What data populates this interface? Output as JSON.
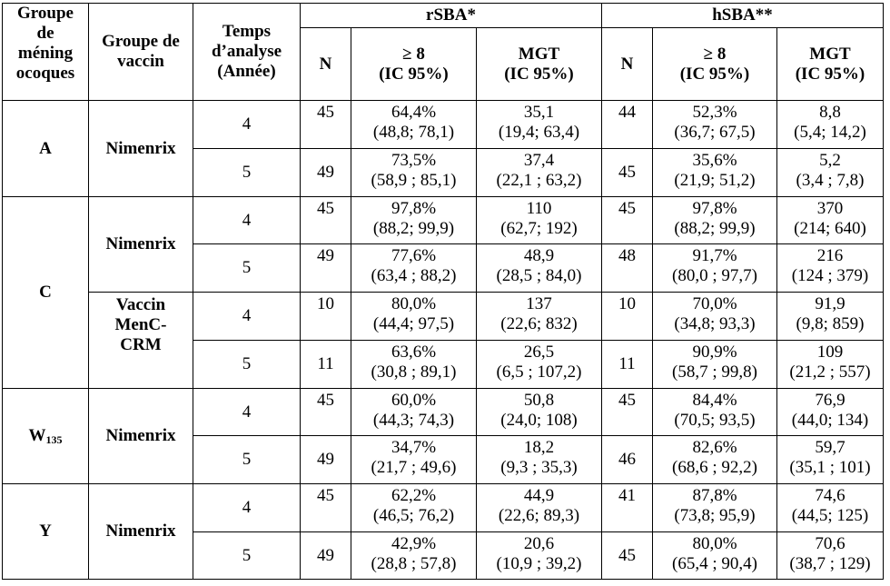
{
  "headers": {
    "groupe_meningocoques": [
      "Groupe",
      "de",
      "méning",
      "ocoques"
    ],
    "groupe_vaccin": [
      "Groupe de",
      "vaccin"
    ],
    "temps_analyse": [
      "Temps",
      "d’analyse",
      "(Année)"
    ],
    "rsba": "rSBA*",
    "hsba": "hSBA**",
    "n": "N",
    "ge8": [
      "≥ 8",
      "(IC 95%)"
    ],
    "mgt": [
      "MGT",
      "(IC 95%)"
    ]
  },
  "groups": {
    "A": "A",
    "C": "C",
    "W": "W",
    "W_sub": "135",
    "Y": "Y"
  },
  "vaccines": {
    "nimenrix": "Nimenrix",
    "menc": [
      "Vaccin",
      "MenC-",
      "CRM"
    ]
  },
  "rows": [
    {
      "time": "4",
      "rN": "45",
      "rG": [
        "64,4%",
        "(48,8; 78,1)"
      ],
      "rM": [
        "35,1",
        "(19,4; 63,4)"
      ],
      "hN": "44",
      "hG": [
        "52,3%",
        "(36,7; 67,5)"
      ],
      "hM": [
        "8,8",
        "(5,4; 14,2)"
      ]
    },
    {
      "time": "5",
      "rN": "49",
      "rG": [
        "73,5%",
        "(58,9 ; 85,1)"
      ],
      "rM": [
        "37,4",
        "(22,1 ; 63,2)"
      ],
      "hN": "45",
      "hG": [
        "35,6%",
        "(21,9; 51,2)"
      ],
      "hM": [
        "5,2",
        "(3,4 ; 7,8)"
      ]
    },
    {
      "time": "4",
      "rN": "45",
      "rG": [
        "97,8%",
        "(88,2; 99,9)"
      ],
      "rM": [
        "110",
        "(62,7; 192)"
      ],
      "hN": "45",
      "hG": [
        "97,8%",
        "(88,2; 99,9)"
      ],
      "hM": [
        "370",
        "(214; 640)"
      ]
    },
    {
      "time": "5",
      "rN": "49",
      "rG": [
        "77,6%",
        "(63,4 ; 88,2)"
      ],
      "rM": [
        "48,9",
        "(28,5 ; 84,0)"
      ],
      "hN": "48",
      "hG": [
        "91,7%",
        "(80,0 ; 97,7)"
      ],
      "hM": [
        "216",
        "(124 ; 379)"
      ]
    },
    {
      "time": "4",
      "rN": "10",
      "rG": [
        "80,0%",
        "(44,4; 97,5)"
      ],
      "rM": [
        "137",
        "(22,6; 832)"
      ],
      "hN": "10",
      "hG": [
        "70,0%",
        "(34,8; 93,3)"
      ],
      "hM": [
        "91,9",
        "(9,8; 859)"
      ]
    },
    {
      "time": "5",
      "rN": "11",
      "rG": [
        "63,6%",
        "(30,8 ; 89,1)"
      ],
      "rM": [
        "26,5",
        "(6,5 ; 107,2)"
      ],
      "hN": "11",
      "hG": [
        "90,9%",
        "(58,7 ; 99,8)"
      ],
      "hM": [
        "109",
        "(21,2 ; 557)"
      ]
    },
    {
      "time": "4",
      "rN": "45",
      "rG": [
        "60,0%",
        "(44,3; 74,3)"
      ],
      "rM": [
        "50,8",
        "(24,0; 108)"
      ],
      "hN": "45",
      "hG": [
        "84,4%",
        "(70,5; 93,5)"
      ],
      "hM": [
        "76,9",
        "(44,0; 134)"
      ]
    },
    {
      "time": "5",
      "rN": "49",
      "rG": [
        "34,7%",
        "(21,7 ; 49,6)"
      ],
      "rM": [
        "18,2",
        "(9,3 ; 35,3)"
      ],
      "hN": "46",
      "hG": [
        "82,6%",
        "(68,6 ; 92,2)"
      ],
      "hM": [
        "59,7",
        "(35,1 ; 101)"
      ]
    },
    {
      "time": "4",
      "rN": "45",
      "rG": [
        "62,2%",
        "(46,5; 76,2)"
      ],
      "rM": [
        "44,9",
        "(22,6; 89,3)"
      ],
      "hN": "41",
      "hG": [
        "87,8%",
        "(73,8; 95,9)"
      ],
      "hM": [
        "74,6",
        "(44,5; 125)"
      ]
    },
    {
      "time": "5",
      "rN": "49",
      "rG": [
        "42,9%",
        "(28,8 ; 57,8)"
      ],
      "rM": [
        "20,6",
        "(10,9 ; 39,2)"
      ],
      "hN": "45",
      "hG": [
        "80,0%",
        "(65,4 ; 90,4)"
      ],
      "hM": [
        "70,6",
        "(38,7 ; 129)"
      ]
    }
  ]
}
